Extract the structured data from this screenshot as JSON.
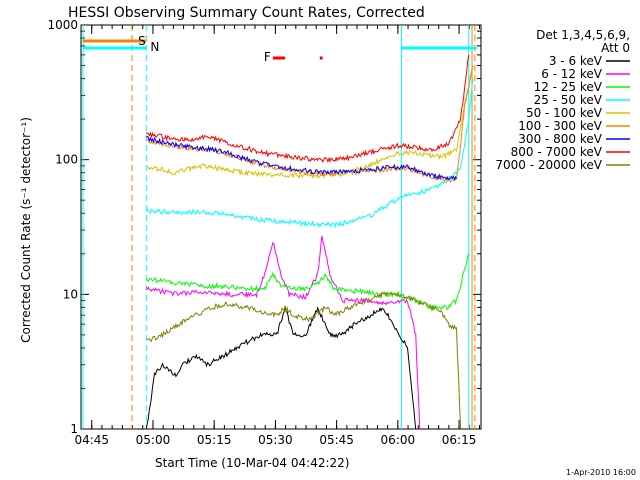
{
  "chart_data": {
    "type": "line",
    "title": "HESSI Observing Summary Count Rates, Corrected",
    "xlabel": "Start Time (10-Mar-04 04:42:22)",
    "ylabel": "Corrected Count Rate (s⁻¹ detector⁻¹)",
    "x_ticks": [
      "04:45",
      "05:00",
      "05:15",
      "05:30",
      "05:45",
      "06:00",
      "06:15"
    ],
    "x_range_minutes": [
      0,
      98
    ],
    "x_tick_minutes": [
      2.63,
      17.63,
      32.63,
      47.63,
      62.63,
      77.63,
      92.63
    ],
    "y_scale": "log",
    "ylim": [
      1,
      1000
    ],
    "y_ticks": [
      "1",
      "10",
      "100",
      "1000"
    ],
    "legend_header": [
      "Det 1,3,4,5,6,9,",
      "Att 0"
    ],
    "legend_position": "right",
    "timestamp": "1-Apr-2010 16:00",
    "flags": {
      "S": {
        "label": "S",
        "color": "#ff8000"
      },
      "N": {
        "label": "N",
        "color": "#00ffff"
      },
      "F": {
        "label": "F",
        "color": "#ff0000"
      }
    },
    "series": [
      {
        "name": "3 - 6 keV",
        "color": "#000000",
        "points": [
          [
            16,
            1
          ],
          [
            17,
            1.5
          ],
          [
            18,
            2.5
          ],
          [
            20,
            3
          ],
          [
            23,
            2.5
          ],
          [
            25,
            3
          ],
          [
            28,
            3.5
          ],
          [
            31,
            3
          ],
          [
            35,
            3.5
          ],
          [
            38,
            4
          ],
          [
            44,
            5
          ],
          [
            48,
            5
          ],
          [
            50,
            8
          ],
          [
            52,
            5
          ],
          [
            55,
            5
          ],
          [
            58,
            8
          ],
          [
            61,
            5
          ],
          [
            64,
            5
          ],
          [
            67,
            6
          ],
          [
            71,
            7
          ],
          [
            74,
            8
          ],
          [
            78,
            5
          ],
          [
            80,
            4
          ],
          [
            82,
            1
          ]
        ]
      },
      {
        "name": "6 - 12 keV",
        "color": "#ff00ff",
        "points": [
          [
            16,
            11
          ],
          [
            20,
            10.5
          ],
          [
            24,
            10
          ],
          [
            28,
            10.5
          ],
          [
            33,
            10
          ],
          [
            38,
            10
          ],
          [
            43,
            10
          ],
          [
            45,
            14
          ],
          [
            47,
            25
          ],
          [
            49,
            14
          ],
          [
            51,
            10
          ],
          [
            55,
            9.5
          ],
          [
            58,
            14
          ],
          [
            59,
            28
          ],
          [
            61,
            14
          ],
          [
            64,
            9
          ],
          [
            68,
            9
          ],
          [
            72,
            9
          ],
          [
            74,
            8.5
          ],
          [
            78,
            9
          ],
          [
            80,
            9
          ],
          [
            82,
            5
          ],
          [
            83,
            1
          ]
        ]
      },
      {
        "name": "12 - 25 keV",
        "color": "#00ff00",
        "points": [
          [
            16,
            13
          ],
          [
            20,
            12.5
          ],
          [
            25,
            12
          ],
          [
            30,
            11.5
          ],
          [
            35,
            11.5
          ],
          [
            40,
            11
          ],
          [
            45,
            11
          ],
          [
            47,
            14
          ],
          [
            49,
            11.5
          ],
          [
            55,
            11
          ],
          [
            58,
            12
          ],
          [
            60,
            14
          ],
          [
            62,
            11
          ],
          [
            68,
            10.5
          ],
          [
            74,
            10
          ],
          [
            78,
            10
          ],
          [
            82,
            9
          ],
          [
            86,
            8
          ],
          [
            90,
            8
          ],
          [
            92,
            9
          ],
          [
            95,
            20
          ]
        ]
      },
      {
        "name": "25 - 50 keV",
        "color": "#00ffff",
        "points": [
          [
            16,
            42
          ],
          [
            20,
            41
          ],
          [
            24,
            40
          ],
          [
            28,
            41
          ],
          [
            33,
            40
          ],
          [
            38,
            38
          ],
          [
            43,
            36
          ],
          [
            48,
            35
          ],
          [
            53,
            34
          ],
          [
            58,
            33
          ],
          [
            63,
            33
          ],
          [
            68,
            36
          ],
          [
            72,
            40
          ],
          [
            76,
            48
          ],
          [
            80,
            55
          ],
          [
            84,
            58
          ],
          [
            88,
            65
          ],
          [
            92,
            80
          ],
          [
            93,
            90
          ],
          [
            95,
            200
          ],
          [
            96,
            400
          ]
        ]
      },
      {
        "name": "50 - 100 keV",
        "color": "#d8c000",
        "points": [
          [
            16,
            88
          ],
          [
            20,
            84
          ],
          [
            23,
            80
          ],
          [
            26,
            85
          ],
          [
            30,
            90
          ],
          [
            33,
            87
          ],
          [
            36,
            83
          ],
          [
            40,
            80
          ],
          [
            44,
            78
          ],
          [
            48,
            77
          ],
          [
            53,
            76
          ],
          [
            58,
            76
          ],
          [
            63,
            77
          ],
          [
            68,
            85
          ],
          [
            72,
            95
          ],
          [
            76,
            108
          ],
          [
            80,
            113
          ],
          [
            84,
            110
          ],
          [
            88,
            105
          ],
          [
            90,
            110
          ],
          [
            92,
            120
          ],
          [
            94,
            250
          ],
          [
            96,
            500
          ]
        ]
      },
      {
        "name": "100 - 300 keV",
        "color": "#ff8000",
        "points": [
          [
            16,
            140
          ],
          [
            20,
            132
          ],
          [
            24,
            124
          ],
          [
            28,
            120
          ],
          [
            32,
            118
          ],
          [
            36,
            110
          ],
          [
            40,
            100
          ],
          [
            44,
            92
          ],
          [
            48,
            87
          ],
          [
            52,
            83
          ],
          [
            56,
            80
          ],
          [
            60,
            79
          ],
          [
            64,
            79
          ],
          [
            68,
            81
          ],
          [
            72,
            83
          ],
          [
            76,
            86
          ],
          [
            80,
            86
          ],
          [
            84,
            78
          ],
          [
            88,
            72
          ],
          [
            92,
            70
          ],
          [
            94,
            250
          ],
          [
            96,
            500
          ]
        ]
      },
      {
        "name": "300 - 800 keV",
        "color": "#0000ff",
        "points": [
          [
            16,
            145
          ],
          [
            20,
            135
          ],
          [
            24,
            128
          ],
          [
            28,
            122
          ],
          [
            32,
            120
          ],
          [
            36,
            112
          ],
          [
            40,
            102
          ],
          [
            44,
            94
          ],
          [
            48,
            89
          ],
          [
            52,
            85
          ],
          [
            56,
            82
          ],
          [
            60,
            81
          ],
          [
            64,
            81
          ],
          [
            68,
            83
          ],
          [
            72,
            85
          ],
          [
            76,
            88
          ],
          [
            80,
            88
          ],
          [
            84,
            80
          ],
          [
            88,
            74
          ],
          [
            92,
            72
          ]
        ]
      },
      {
        "name": "800 - 7000 keV",
        "color": "#ff0000",
        "points": [
          [
            16,
            155
          ],
          [
            20,
            148
          ],
          [
            24,
            142
          ],
          [
            28,
            143
          ],
          [
            31,
            148
          ],
          [
            34,
            140
          ],
          [
            38,
            128
          ],
          [
            42,
            118
          ],
          [
            46,
            110
          ],
          [
            50,
            106
          ],
          [
            54,
            103
          ],
          [
            58,
            100
          ],
          [
            62,
            100
          ],
          [
            66,
            104
          ],
          [
            70,
            112
          ],
          [
            74,
            120
          ],
          [
            78,
            128
          ],
          [
            82,
            122
          ],
          [
            86,
            120
          ],
          [
            90,
            130
          ],
          [
            93,
            200
          ],
          [
            95,
            600
          ]
        ]
      },
      {
        "name": "7000 - 20000 keV",
        "color": "#808000",
        "points": [
          [
            16,
            4.5
          ],
          [
            20,
            5
          ],
          [
            24,
            6
          ],
          [
            28,
            7
          ],
          [
            32,
            8
          ],
          [
            36,
            8.5
          ],
          [
            40,
            8
          ],
          [
            44,
            7.5
          ],
          [
            48,
            7
          ],
          [
            50,
            8
          ],
          [
            52,
            7
          ],
          [
            56,
            6.5
          ],
          [
            60,
            8
          ],
          [
            62,
            7
          ],
          [
            66,
            8
          ],
          [
            70,
            9
          ],
          [
            74,
            10
          ],
          [
            78,
            10
          ],
          [
            82,
            9
          ],
          [
            86,
            8
          ],
          [
            88,
            7.5
          ],
          [
            90,
            6
          ],
          [
            92,
            5.5
          ],
          [
            93,
            1
          ]
        ]
      }
    ]
  }
}
